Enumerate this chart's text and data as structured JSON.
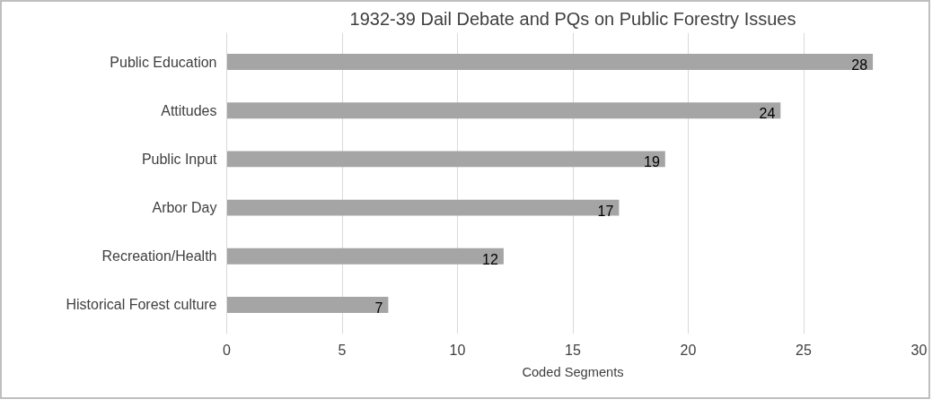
{
  "chart_data": {
    "type": "bar",
    "orientation": "horizontal",
    "title": "1932-39 Dail Debate and PQs on Public Forestry Issues",
    "xlabel": "Coded Segments",
    "categories": [
      "Public Education",
      "Attitudes",
      "Public Input",
      "Arbor Day",
      "Recreation/Health",
      "Historical Forest culture"
    ],
    "values": [
      28,
      24,
      19,
      17,
      12,
      7
    ],
    "color": "#a5a5a5",
    "xlim": [
      0,
      30
    ],
    "xticks": [
      0,
      5,
      10,
      15,
      20,
      25,
      30
    ],
    "grid": "x",
    "data_labels": true
  }
}
